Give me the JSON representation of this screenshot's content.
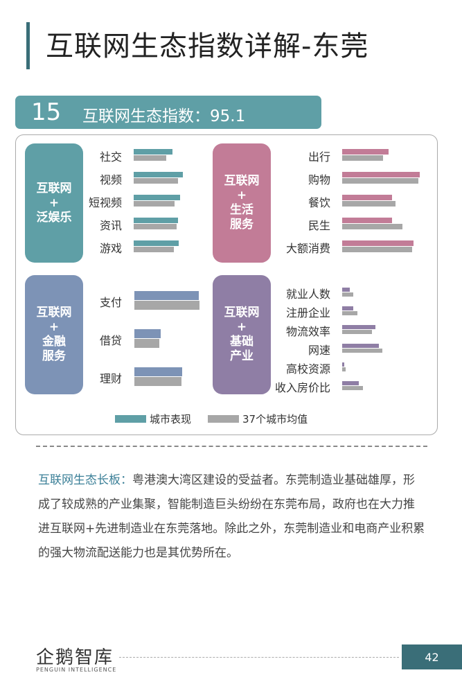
{
  "page": {
    "title": "互联网生态指数详解-东莞",
    "rank": "15",
    "index_label": "互联网生态指数：95.1",
    "page_number": "42",
    "logo_text": "企鹅智库",
    "logo_sub": "PENGUIN INTELLIGENCE"
  },
  "colors": {
    "teal": "#5f9fa6",
    "pink": "#c27c97",
    "blue": "#7d93b6",
    "purple": "#8f7ea5",
    "gray": "#a7a7a7"
  },
  "chart_data": {
    "type": "bar",
    "unit": "relative",
    "legend": [
      "城市表现",
      "37个城市均值"
    ],
    "legend_placement": "bottom",
    "groups": [
      {
        "id": "ent",
        "label": "互联网\n+\n泛娱乐",
        "color": "#5f9fa6",
        "categories": [
          "社交",
          "视频",
          "短视频",
          "资讯",
          "游戏"
        ],
        "series": [
          {
            "name": "城市表现",
            "values": [
              0.5,
              0.63,
              0.6,
              0.57,
              0.58
            ]
          },
          {
            "name": "37个城市均值",
            "values": [
              0.42,
              0.57,
              0.53,
              0.55,
              0.52
            ]
          }
        ]
      },
      {
        "id": "life",
        "label": "互联网\n+\n生活\n服务",
        "color": "#c27c97",
        "categories": [
          "出行",
          "购物",
          "餐饮",
          "民生",
          "大额消费"
        ],
        "series": [
          {
            "name": "城市表现",
            "values": [
              0.6,
              1.0,
              0.64,
              0.64,
              0.92
            ]
          },
          {
            "name": "37个城市均值",
            "values": [
              0.53,
              0.98,
              0.69,
              0.78,
              0.9
            ]
          }
        ]
      },
      {
        "id": "fin",
        "label": "互联网\n+\n金融\n服务",
        "color": "#7d93b6",
        "categories": [
          "支付",
          "借贷",
          "理财"
        ],
        "series": [
          {
            "name": "城市表现",
            "values": [
              0.97,
              0.4,
              0.72
            ]
          },
          {
            "name": "37个城市均值",
            "values": [
              0.98,
              0.38,
              0.71
            ]
          }
        ]
      },
      {
        "id": "ind",
        "label": "互联网\n+\n基础\n产业",
        "color": "#8f7ea5",
        "categories": [
          "就业人数",
          "注册企业",
          "物流效率",
          "网速",
          "高校资源",
          "收入房价比"
        ],
        "series": [
          {
            "name": "城市表现",
            "values": [
              0.07,
              0.1,
              0.3,
              0.33,
              0.02,
              0.15
            ]
          },
          {
            "name": "37个城市均值",
            "values": [
              0.1,
              0.14,
              0.27,
              0.36,
              0.03,
              0.19
            ]
          }
        ]
      }
    ]
  },
  "text": {
    "highlight": "互联网生态长板：",
    "body": "粤港澳大湾区建设的受益者。东莞制造业基础雄厚，形成了较成熟的产业集聚，智能制造巨头纷纷在东莞布局，政府也在大力推进互联网+先进制造业在东莞落地。除此之外，东莞制造业和电商产业积累的强大物流配送能力也是其优势所在。"
  }
}
